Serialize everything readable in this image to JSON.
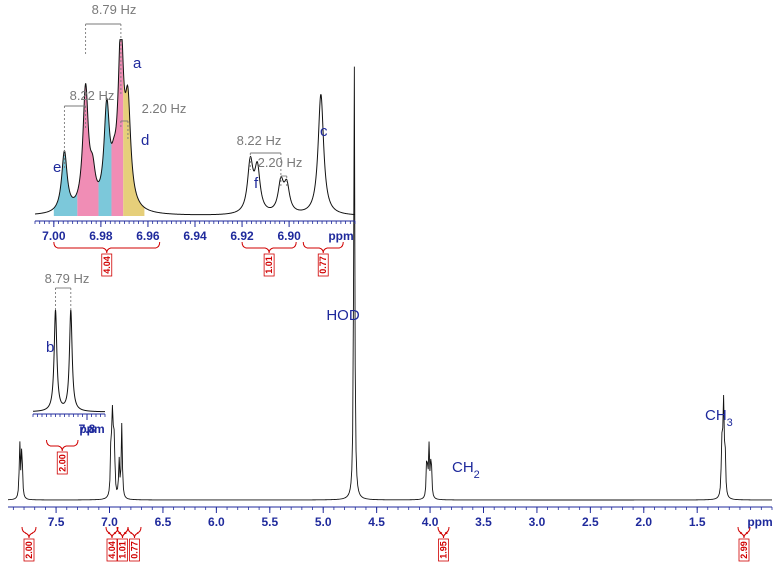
{
  "colors": {
    "trace": "#111111",
    "axis": "#1f2a9c",
    "integral": "#d00000",
    "coupling": "#7a7a7a",
    "fill_e": "#7cc8da",
    "fill_pink": "#f08db5",
    "fill_d": "#e6cf7a"
  },
  "chart_data": [
    {
      "type": "line",
      "name": "main-spectrum",
      "x_unit": "ppm",
      "xlim": [
        7.95,
        0.8
      ],
      "x_direction": "reversed",
      "ticks": [
        "7.5",
        "7.0",
        "6.5",
        "6.0",
        "5.5",
        "5.0",
        "4.5",
        "4.0",
        "3.5",
        "3.0",
        "2.5",
        "2.0",
        "1.5"
      ],
      "tick_values": [
        7.5,
        7.0,
        6.5,
        6.0,
        5.5,
        5.0,
        4.5,
        4.0,
        3.5,
        3.0,
        2.5,
        2.0,
        1.5
      ],
      "unit_label": "ppm",
      "peaks": [
        {
          "ppm": 7.84,
          "height": 0.12
        },
        {
          "ppm": 7.82,
          "height": 0.12
        },
        {
          "ppm": 6.985,
          "height": 0.14
        },
        {
          "ppm": 6.97,
          "height": 0.2
        },
        {
          "ppm": 6.955,
          "height": 0.12
        },
        {
          "ppm": 6.91,
          "height": 0.08
        },
        {
          "ppm": 6.885,
          "height": 0.16
        },
        {
          "ppm": 4.71,
          "height": 0.98
        },
        {
          "ppm": 4.03,
          "height": 0.1
        },
        {
          "ppm": 4.01,
          "height": 0.11
        },
        {
          "ppm": 3.99,
          "height": 0.1
        },
        {
          "ppm": 1.27,
          "height": 0.11
        },
        {
          "ppm": 1.255,
          "height": 0.22
        },
        {
          "ppm": 1.24,
          "height": 0.11
        }
      ],
      "peak_labels": [
        {
          "id": "hod",
          "text": "HOD",
          "ppm": 4.71
        },
        {
          "id": "ch2",
          "text": "CH",
          "sub": "2",
          "ppm": 4.01
        },
        {
          "id": "ch3",
          "text": "CH",
          "sub": "3",
          "ppm": 1.255
        }
      ],
      "integrals": [
        {
          "ppm": 7.83,
          "value": "2.00"
        },
        {
          "ppm": 6.975,
          "value": "4.04"
        },
        {
          "ppm": 6.92,
          "value": "1.01"
        },
        {
          "ppm": 6.885,
          "value": "0.77"
        },
        {
          "ppm": 4.01,
          "value": "1.95"
        },
        {
          "ppm": 1.255,
          "value": "2.99"
        }
      ]
    },
    {
      "type": "line",
      "name": "inset-aromatic",
      "x_unit": "ppm",
      "xlim": [
        7.008,
        6.872
      ],
      "x_direction": "reversed",
      "ticks": [
        "7.00",
        "6.98",
        "6.96",
        "6.94",
        "6.92",
        "6.90"
      ],
      "tick_values": [
        7.0,
        6.98,
        6.96,
        6.94,
        6.92,
        6.9
      ],
      "unit_label": "ppm",
      "peaks": [
        {
          "ppm": 6.9955,
          "height": 0.36,
          "region": "e"
        },
        {
          "ppm": 6.9865,
          "height": 0.72,
          "region": "pink"
        },
        {
          "ppm": 6.9835,
          "height": 0.18,
          "region": "pink"
        },
        {
          "ppm": 6.9775,
          "height": 0.58,
          "region": "e2"
        },
        {
          "ppm": 6.9745,
          "height": 0.14,
          "region": "pink2"
        },
        {
          "ppm": 6.9715,
          "height": 1.0,
          "region": "pink2"
        },
        {
          "ppm": 6.9685,
          "height": 0.56,
          "region": "d"
        },
        {
          "ppm": 6.9165,
          "height": 0.3
        },
        {
          "ppm": 6.9135,
          "height": 0.26
        },
        {
          "ppm": 6.9035,
          "height": 0.18
        },
        {
          "ppm": 6.901,
          "height": 0.16
        },
        {
          "ppm": 6.8865,
          "height": 0.72
        }
      ],
      "peak_labels": [
        {
          "id": "a",
          "text": "a",
          "ppm": 6.9715
        },
        {
          "id": "c",
          "text": "c",
          "ppm": 6.8845
        },
        {
          "id": "d",
          "text": "d",
          "ppm": 6.9675
        },
        {
          "id": "e",
          "text": "e",
          "ppm": 6.9985
        },
        {
          "id": "f",
          "text": "f",
          "ppm": 6.9055
        }
      ],
      "couplings": [
        {
          "text": "8.79 Hz",
          "from": 6.9865,
          "to": 6.9715
        },
        {
          "text": "8.22 Hz",
          "from": 6.9955,
          "to": 6.9865
        },
        {
          "text": "2.20 Hz",
          "from": 6.9715,
          "to": 6.9685
        },
        {
          "text": "8.22 Hz",
          "from": 6.9165,
          "to": 6.9035
        },
        {
          "text": "2.20 Hz",
          "from": 6.9035,
          "to": 6.901
        }
      ],
      "integrals": [
        {
          "from": 7.0,
          "to": 6.955,
          "value": "4.04"
        },
        {
          "from": 6.92,
          "to": 6.897,
          "value": "1.01"
        },
        {
          "from": 6.894,
          "to": 6.877,
          "value": "0.77"
        }
      ]
    },
    {
      "type": "line",
      "name": "inset-b",
      "x_unit": "ppm",
      "xlim": [
        7.86,
        7.78
      ],
      "x_direction": "reversed",
      "ticks": [
        "7.8"
      ],
      "tick_values": [
        7.8
      ],
      "unit_label": "ppm",
      "peaks": [
        {
          "ppm": 7.835,
          "height": 0.95
        },
        {
          "ppm": 7.818,
          "height": 0.95
        }
      ],
      "peak_labels": [
        {
          "id": "b",
          "text": "b",
          "ppm": 7.845
        }
      ],
      "couplings": [
        {
          "text": "8.79 Hz",
          "from": 7.835,
          "to": 7.818
        }
      ],
      "integrals": [
        {
          "from": 7.845,
          "to": 7.81,
          "value": "2.00"
        }
      ]
    }
  ]
}
